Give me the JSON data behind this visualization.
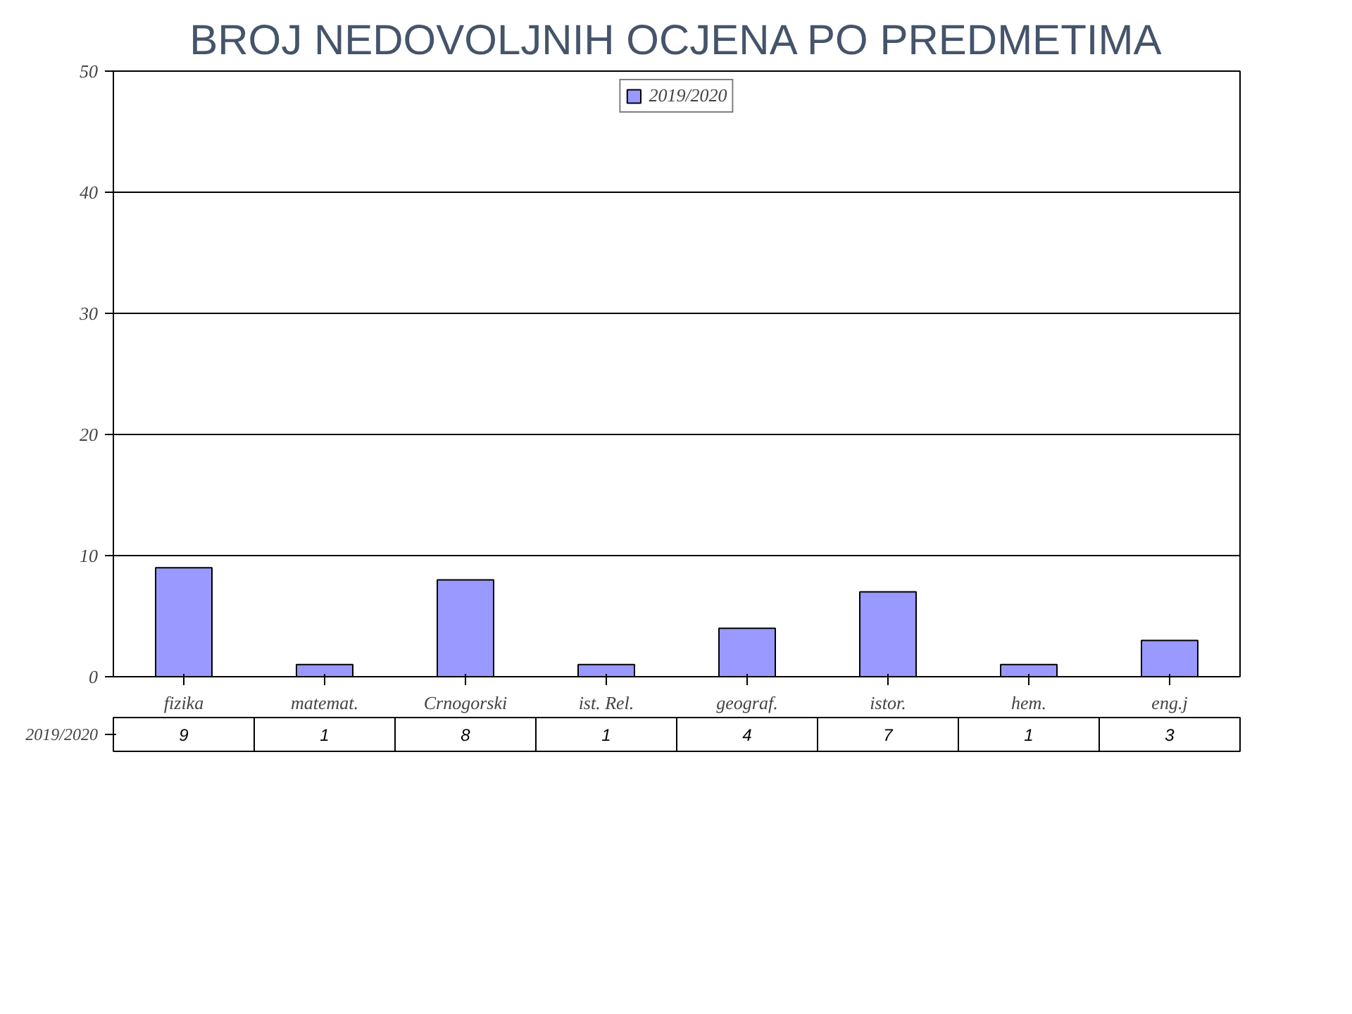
{
  "chart_data": {
    "type": "bar",
    "title": "BROJ NEDOVOLJNIH OCJENA PO PREDMETIMA",
    "categories": [
      "fizika",
      "matemat.",
      "Crnogorski",
      "ist. Rel.",
      "geograf.",
      "istor.",
      "hem.",
      "eng.j"
    ],
    "series": [
      {
        "name": "2019/2020",
        "color": "#9999ff",
        "values": [
          9,
          1,
          8,
          1,
          4,
          7,
          1,
          3
        ]
      }
    ],
    "ylim": [
      0,
      50
    ],
    "yticks": [
      0,
      10,
      20,
      30,
      40,
      50
    ],
    "grid": "y",
    "legend": "top",
    "data_labels": true
  }
}
